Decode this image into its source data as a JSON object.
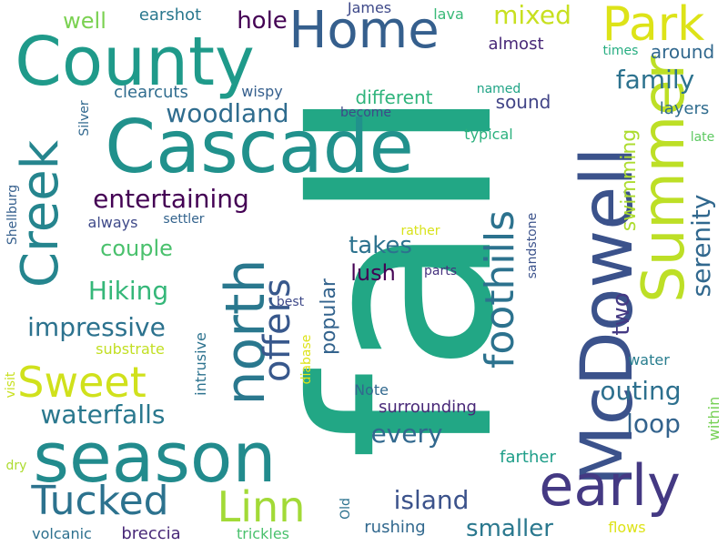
{
  "words": [
    {
      "text": "fall",
      "color": "#22a785",
      "vertical": true
    },
    {
      "text": "Cascade",
      "color": "#21918c",
      "vertical": false
    },
    {
      "text": "McDowell",
      "color": "#3b528b",
      "vertical": true
    },
    {
      "text": "County",
      "color": "#1f9a8a",
      "vertical": false
    },
    {
      "text": "season",
      "color": "#228b8d",
      "vertical": false
    },
    {
      "text": "Summer",
      "color": "#bddf26",
      "vertical": true
    },
    {
      "text": "early",
      "color": "#443983",
      "vertical": false
    },
    {
      "text": "north",
      "color": "#2a788e",
      "vertical": true
    },
    {
      "text": "Creek",
      "color": "#25858e",
      "vertical": true
    },
    {
      "text": "Park",
      "color": "#dde318",
      "vertical": false
    },
    {
      "text": "Home",
      "color": "#355f8d",
      "vertical": false
    },
    {
      "text": "foothills",
      "color": "#2c728e",
      "vertical": true
    },
    {
      "text": "Linn",
      "color": "#a2da37",
      "vertical": false
    },
    {
      "text": "Tucked",
      "color": "#2c728e",
      "vertical": false
    },
    {
      "text": "offers",
      "color": "#38588c",
      "vertical": true
    },
    {
      "text": "Sweet",
      "color": "#d0e11c",
      "vertical": false
    },
    {
      "text": "entertaining",
      "color": "#440154",
      "vertical": false
    },
    {
      "text": "woodland",
      "color": "#2f6c8e",
      "vertical": false
    },
    {
      "text": "impressive",
      "color": "#2c728e",
      "vertical": false
    },
    {
      "text": "waterfalls",
      "color": "#2a788e",
      "vertical": false
    },
    {
      "text": "Hiking",
      "color": "#35b779",
      "vertical": false
    },
    {
      "text": "island",
      "color": "#3b528b",
      "vertical": false
    },
    {
      "text": "family",
      "color": "#2c728e",
      "vertical": false
    },
    {
      "text": "serenity",
      "color": "#31688e",
      "vertical": true
    },
    {
      "text": "outing",
      "color": "#2d708e",
      "vertical": false
    },
    {
      "text": "every",
      "color": "#31688e",
      "vertical": false
    },
    {
      "text": "mixed",
      "color": "#c8e020",
      "vertical": false
    },
    {
      "text": "hole",
      "color": "#440154",
      "vertical": false
    },
    {
      "text": "loop",
      "color": "#33638d",
      "vertical": false
    },
    {
      "text": "couple",
      "color": "#4ac16d",
      "vertical": false
    },
    {
      "text": "takes",
      "color": "#2c728e",
      "vertical": false
    },
    {
      "text": "lush",
      "color": "#440154",
      "vertical": false
    },
    {
      "text": "swimming",
      "color": "#addc30",
      "vertical": true
    },
    {
      "text": "two",
      "color": "#443983",
      "vertical": true
    },
    {
      "text": "smaller",
      "color": "#2a788e",
      "vertical": false
    },
    {
      "text": "popular",
      "color": "#33638d",
      "vertical": true
    },
    {
      "text": "well",
      "color": "#7ad151",
      "vertical": false
    },
    {
      "text": "around",
      "color": "#31688e",
      "vertical": false
    },
    {
      "text": "different",
      "color": "#2fb47c",
      "vertical": false
    },
    {
      "text": "sound",
      "color": "#414487",
      "vertical": false
    },
    {
      "text": "layers",
      "color": "#2f6c8e",
      "vertical": false
    },
    {
      "text": "clearcuts",
      "color": "#2f6c8e",
      "vertical": false
    },
    {
      "text": "earshot",
      "color": "#2a788e",
      "vertical": false
    },
    {
      "text": "James",
      "color": "#3e4989",
      "vertical": false
    },
    {
      "text": "lava",
      "color": "#38b977",
      "vertical": false
    },
    {
      "text": "almost",
      "color": "#482878",
      "vertical": false
    },
    {
      "text": "times",
      "color": "#26ad81",
      "vertical": false
    },
    {
      "text": "wispy",
      "color": "#355f8d",
      "vertical": false
    },
    {
      "text": "become",
      "color": "#3e4989",
      "vertical": false
    },
    {
      "text": "named",
      "color": "#20a486",
      "vertical": false
    },
    {
      "text": "typical",
      "color": "#2cb17e",
      "vertical": false
    },
    {
      "text": "late",
      "color": "#5ec962",
      "vertical": false
    },
    {
      "text": "Silver",
      "color": "#31688e",
      "vertical": true
    },
    {
      "text": "always",
      "color": "#3e4989",
      "vertical": false
    },
    {
      "text": "settler",
      "color": "#33638d",
      "vertical": false
    },
    {
      "text": "rather",
      "color": "#d8e219",
      "vertical": false
    },
    {
      "text": "sandstone",
      "color": "#3b528b",
      "vertical": true
    },
    {
      "text": "parts",
      "color": "#46337f",
      "vertical": false
    },
    {
      "text": "best",
      "color": "#3e4989",
      "vertical": false
    },
    {
      "text": "Shellburg",
      "color": "#355f8d",
      "vertical": true
    },
    {
      "text": "substrate",
      "color": "#c2df23",
      "vertical": false
    },
    {
      "text": "intrusive",
      "color": "#2c728e",
      "vertical": true
    },
    {
      "text": "diabase",
      "color": "#dde318",
      "vertical": true
    },
    {
      "text": "water",
      "color": "#287d8e",
      "vertical": false
    },
    {
      "text": "visit",
      "color": "#c8e020",
      "vertical": true
    },
    {
      "text": "Note",
      "color": "#31688e",
      "vertical": false
    },
    {
      "text": "surrounding",
      "color": "#482878",
      "vertical": false
    },
    {
      "text": "within",
      "color": "#75d054",
      "vertical": true
    },
    {
      "text": "farther",
      "color": "#1f9e89",
      "vertical": false
    },
    {
      "text": "dry",
      "color": "#addc30",
      "vertical": false
    },
    {
      "text": "Old",
      "color": "#2c728e",
      "vertical": true
    },
    {
      "text": "rushing",
      "color": "#31688e",
      "vertical": false
    },
    {
      "text": "flows",
      "color": "#dde318",
      "vertical": false
    },
    {
      "text": "volcanic",
      "color": "#2d708e",
      "vertical": false
    },
    {
      "text": "breccia",
      "color": "#482878",
      "vertical": false
    },
    {
      "text": "trickles",
      "color": "#4ac16d",
      "vertical": false
    }
  ]
}
